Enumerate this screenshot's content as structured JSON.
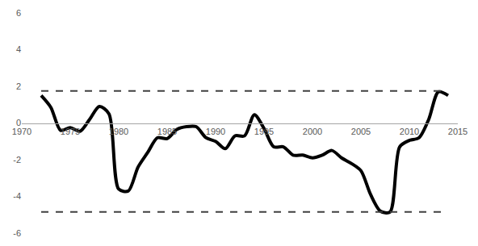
{
  "chart_data": {
    "type": "line",
    "x": [
      1972,
      1973,
      1974,
      1975,
      1976,
      1977,
      1978,
      1979,
      1980,
      1981,
      1982,
      1983,
      1984,
      1985,
      1986,
      1987,
      1988,
      1989,
      1990,
      1991,
      1992,
      1993,
      1994,
      1995,
      1996,
      1997,
      1998,
      1999,
      2000,
      2001,
      2002,
      2003,
      2004,
      2005,
      2006,
      2007,
      2008,
      2009,
      2010,
      2011,
      2012,
      2013,
      2014
    ],
    "series": [
      {
        "color": "#000000",
        "line_style": "solid",
        "values": [
          1.5,
          0.85,
          -0.4,
          -0.25,
          -0.45,
          0.2,
          0.9,
          0.5,
          -3.6,
          -3.7,
          -2.4,
          -1.6,
          -0.8,
          -0.85,
          -0.35,
          -0.2,
          -0.2,
          -0.8,
          -1.0,
          -1.4,
          -0.7,
          -0.7,
          0.45,
          -0.3,
          -1.3,
          -1.3,
          -1.75,
          -1.75,
          -1.9,
          -1.75,
          -1.5,
          -1.9,
          -2.2,
          -2.6,
          -3.9,
          -4.8,
          -4.85,
          -1.3,
          -0.95,
          -0.8,
          0.2,
          1.7,
          1.5
        ]
      },
      {
        "color": "#404040",
        "line_style": "dashed",
        "values": [
          1.75,
          1.75,
          1.75,
          1.75,
          1.75,
          1.75,
          1.75,
          1.75,
          1.75,
          1.75,
          1.75,
          1.75,
          1.75,
          1.75,
          1.75,
          1.75,
          1.75,
          1.75,
          1.75,
          1.75,
          1.75,
          1.75,
          1.75,
          1.75,
          1.75,
          1.75,
          1.75,
          1.75,
          1.75,
          1.75,
          1.75,
          1.75,
          1.75,
          1.75,
          1.75,
          1.75,
          1.75,
          1.75,
          1.75,
          1.75,
          1.75,
          1.75,
          1.75
        ]
      },
      {
        "color": "#404040",
        "line_style": "dashed",
        "values": [
          -4.85,
          -4.85,
          -4.85,
          -4.85,
          -4.85,
          -4.85,
          -4.85,
          -4.85,
          -4.85,
          -4.85,
          -4.85,
          -4.85,
          -4.85,
          -4.85,
          -4.85,
          -4.85,
          -4.85,
          -4.85,
          -4.85,
          -4.85,
          -4.85,
          -4.85,
          -4.85,
          -4.85,
          -4.85,
          -4.85,
          -4.85,
          -4.85,
          -4.85,
          -4.85,
          -4.85,
          -4.85,
          -4.85,
          -4.85,
          -4.85,
          -4.85,
          -4.85,
          -4.85,
          -4.85,
          -4.85,
          -4.85,
          -4.85,
          -4.85
        ]
      }
    ],
    "xlim": [
      1970,
      2015
    ],
    "xticks": [
      1970,
      1975,
      1980,
      1985,
      1990,
      1995,
      2000,
      2005,
      2010,
      2015
    ],
    "ylim": [
      -6,
      6
    ],
    "yticks": [
      -6,
      -4,
      -2,
      0,
      2,
      4,
      6
    ],
    "grid": false
  }
}
